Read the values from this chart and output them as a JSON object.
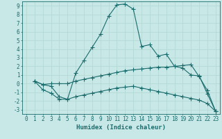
{
  "bg_color": "#c8e8e8",
  "grid_color": "#b0d8d0",
  "line_color": "#1a6b6b",
  "xlabel": "Humidex (Indice chaleur)",
  "xlabel_fontsize": 6.5,
  "tick_fontsize": 5.5,
  "xlim": [
    -0.5,
    23.5
  ],
  "ylim": [
    -3.5,
    9.5
  ],
  "xticks": [
    0,
    1,
    2,
    3,
    4,
    5,
    6,
    7,
    8,
    9,
    10,
    11,
    12,
    13,
    14,
    15,
    16,
    17,
    18,
    19,
    20,
    21,
    22,
    23
  ],
  "yticks": [
    -3,
    -2,
    -1,
    0,
    1,
    2,
    3,
    4,
    5,
    6,
    7,
    8,
    9
  ],
  "line1_x": [
    1,
    2,
    3,
    4,
    5,
    6,
    7,
    8,
    9,
    10,
    11,
    12,
    13,
    14,
    15,
    16,
    17,
    18,
    19,
    20,
    21,
    22,
    23
  ],
  "line1_y": [
    0.3,
    -0.7,
    -1.1,
    -1.8,
    -1.8,
    1.2,
    2.7,
    4.2,
    5.7,
    7.8,
    9.1,
    9.2,
    8.6,
    4.3,
    4.5,
    3.2,
    3.4,
    2.0,
    1.8,
    1.0,
    0.9,
    -1.2,
    -3.2
  ],
  "line2_x": [
    1,
    2,
    3,
    4,
    5,
    6,
    7,
    8,
    9,
    10,
    11,
    12,
    13,
    14,
    15,
    16,
    17,
    18,
    19,
    20,
    21,
    22,
    23
  ],
  "line2_y": [
    0.3,
    -0.1,
    0.0,
    0.0,
    0.0,
    0.3,
    0.5,
    0.7,
    0.9,
    1.1,
    1.3,
    1.5,
    1.6,
    1.7,
    1.8,
    1.9,
    1.9,
    2.0,
    2.1,
    2.2,
    0.8,
    -0.8,
    -3.2
  ],
  "line3_x": [
    1,
    2,
    3,
    4,
    5,
    6,
    7,
    8,
    9,
    10,
    11,
    12,
    13,
    14,
    15,
    16,
    17,
    18,
    19,
    20,
    21,
    22,
    23
  ],
  "line3_y": [
    0.3,
    -0.1,
    -0.3,
    -1.5,
    -1.8,
    -1.5,
    -1.3,
    -1.1,
    -0.9,
    -0.7,
    -0.5,
    -0.4,
    -0.3,
    -0.5,
    -0.7,
    -0.9,
    -1.1,
    -1.3,
    -1.5,
    -1.7,
    -1.9,
    -2.3,
    -3.2
  ]
}
